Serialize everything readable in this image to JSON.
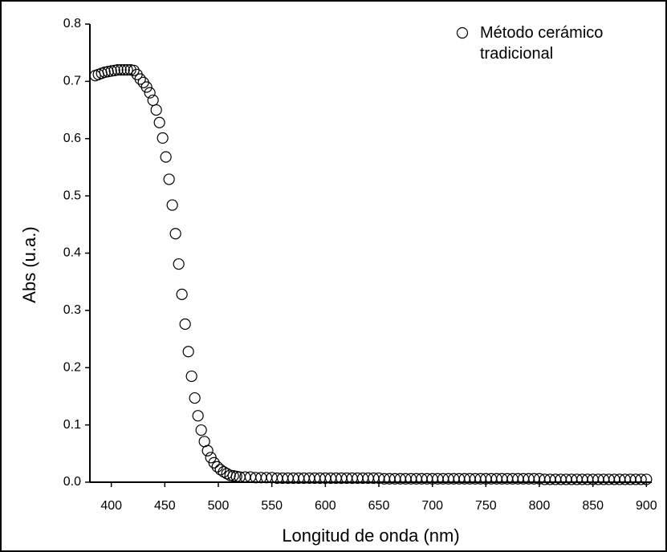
{
  "chart_data": {
    "type": "scatter",
    "x_label": "Longitud de onda (nm)",
    "y_label": "Abs (u.a.)",
    "xlim": [
      380,
      905
    ],
    "ylim": [
      0,
      0.8
    ],
    "xticks": [
      400,
      450,
      500,
      550,
      600,
      650,
      700,
      750,
      800,
      850,
      900
    ],
    "yticks": [
      {
        "value": 0,
        "label": "0.0"
      },
      0.1,
      0.2,
      0.3,
      0.4,
      0.5,
      0.6,
      0.7,
      0.8
    ],
    "legend_position": "upper right",
    "series": [
      {
        "name": "Método cerámico tradicional",
        "color": "#000000",
        "x": [
          385,
          388,
          391,
          394,
          397,
          400,
          403,
          406,
          409,
          412,
          415,
          418,
          421,
          424,
          427,
          430,
          433,
          436,
          439,
          442,
          445,
          448,
          451,
          454,
          457,
          460,
          463,
          466,
          469,
          472,
          475,
          478,
          481,
          484,
          487,
          490,
          493,
          496,
          499,
          502,
          505,
          508,
          511,
          514,
          517,
          520,
          525,
          530,
          535,
          540,
          545,
          550,
          555,
          560,
          565,
          570,
          575,
          580,
          585,
          590,
          595,
          600,
          605,
          610,
          615,
          620,
          625,
          630,
          635,
          640,
          645,
          650,
          655,
          660,
          665,
          670,
          675,
          680,
          685,
          690,
          695,
          700,
          705,
          710,
          715,
          720,
          725,
          730,
          735,
          740,
          745,
          750,
          755,
          760,
          765,
          770,
          775,
          780,
          785,
          790,
          795,
          800,
          805,
          810,
          815,
          820,
          825,
          830,
          835,
          840,
          845,
          850,
          855,
          860,
          865,
          870,
          875,
          880,
          885,
          890,
          895,
          900
        ],
        "values": [
          0.71,
          0.712,
          0.714,
          0.716,
          0.717,
          0.718,
          0.719,
          0.72,
          0.72,
          0.72,
          0.72,
          0.72,
          0.719,
          0.712,
          0.704,
          0.698,
          0.69,
          0.68,
          0.667,
          0.65,
          0.628,
          0.601,
          0.568,
          0.529,
          0.484,
          0.434,
          0.381,
          0.328,
          0.276,
          0.228,
          0.185,
          0.147,
          0.116,
          0.091,
          0.071,
          0.055,
          0.043,
          0.034,
          0.027,
          0.022,
          0.018,
          0.015,
          0.012,
          0.011,
          0.01,
          0.009,
          0.009,
          0.009,
          0.008,
          0.008,
          0.008,
          0.008,
          0.007,
          0.007,
          0.007,
          0.007,
          0.007,
          0.007,
          0.007,
          0.007,
          0.007,
          0.007,
          0.007,
          0.007,
          0.007,
          0.007,
          0.007,
          0.007,
          0.007,
          0.007,
          0.007,
          0.007,
          0.006,
          0.006,
          0.006,
          0.006,
          0.006,
          0.006,
          0.006,
          0.006,
          0.006,
          0.006,
          0.006,
          0.006,
          0.006,
          0.006,
          0.006,
          0.006,
          0.006,
          0.006,
          0.006,
          0.006,
          0.006,
          0.006,
          0.006,
          0.006,
          0.006,
          0.006,
          0.006,
          0.006,
          0.006,
          0.006,
          0.005,
          0.005,
          0.005,
          0.005,
          0.005,
          0.005,
          0.005,
          0.005,
          0.005,
          0.005,
          0.005,
          0.005,
          0.005,
          0.005,
          0.005,
          0.005,
          0.005,
          0.005,
          0.005,
          0.005
        ]
      }
    ]
  }
}
